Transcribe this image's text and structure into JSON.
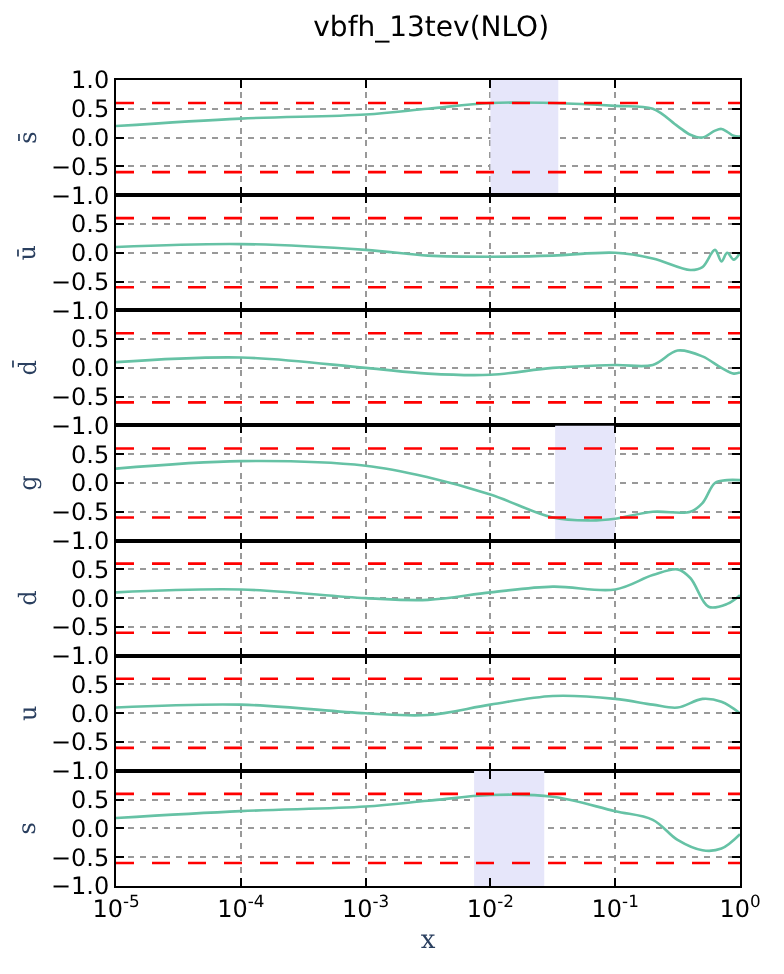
{
  "chart_data": [
    {
      "type": "line",
      "title": "vbfh_13tev(NLO)",
      "ylabel": "s̄",
      "tick_labels": "y",
      "grid": true,
      "line_style": "solid",
      "marker": "none",
      "xlim": [
        1e-05,
        1
      ],
      "log": "x",
      "ylim": [
        -1,
        1
      ],
      "yticks": [
        {
          "value": -1,
          "label": "−1.0"
        },
        {
          "value": -0.5,
          "label": "−0.5"
        },
        {
          "value": 0,
          "label": "0.0"
        },
        {
          "value": 0.5,
          "label": "0.5"
        },
        {
          "value": 1,
          "label": "1.0"
        }
      ],
      "xticks": [
        {
          "value": 1e-05,
          "label": null
        },
        {
          "value": 0.0001,
          "label": null
        },
        {
          "value": 0.001,
          "label": null
        },
        {
          "value": 0.01,
          "label": null
        },
        {
          "value": 0.1,
          "label": null
        },
        {
          "value": 1,
          "label": null
        }
      ],
      "ref_lines": [
        {
          "axis": "y",
          "value": 0.6,
          "color": "#ff0000",
          "line_style": "dashed"
        },
        {
          "axis": "y",
          "value": -0.6,
          "color": "#ff0000",
          "line_style": "dashed"
        }
      ],
      "bands": [
        {
          "axis": "x",
          "from": 0.01,
          "to": 0.035,
          "color": "#e6e6fa"
        }
      ],
      "series": [
        {
          "color": "#66c2a5",
          "x": [
            1e-05,
            0.0001,
            0.001,
            0.00316,
            0.01,
            0.0316,
            0.1,
            0.2,
            0.316,
            0.4,
            0.5,
            0.63,
            0.71,
            0.79,
            0.89,
            1
          ],
          "values": [
            0.2,
            0.33,
            0.4,
            0.5,
            0.6,
            0.6,
            0.55,
            0.5,
            0.2,
            0.05,
            0.0,
            0.12,
            0.15,
            0.1,
            0.03,
            0.02
          ]
        }
      ]
    },
    {
      "type": "line",
      "ylabel": "ū",
      "tick_labels": "y",
      "grid": true,
      "line_style": "solid",
      "marker": "none",
      "xlim": [
        1e-05,
        1
      ],
      "log": "x",
      "ylim": [
        -1,
        1
      ],
      "yticks": [
        {
          "value": -1,
          "label": "−1.0"
        },
        {
          "value": -0.5,
          "label": "−0.5"
        },
        {
          "value": 0,
          "label": "0.0"
        },
        {
          "value": 0.5,
          "label": "0.5"
        },
        {
          "value": 1,
          "label": null
        }
      ],
      "xticks": [
        {
          "value": 1e-05,
          "label": null
        },
        {
          "value": 0.0001,
          "label": null
        },
        {
          "value": 0.001,
          "label": null
        },
        {
          "value": 0.01,
          "label": null
        },
        {
          "value": 0.1,
          "label": null
        },
        {
          "value": 1,
          "label": null
        }
      ],
      "ref_lines": [
        {
          "axis": "y",
          "value": 0.6,
          "color": "#ff0000",
          "line_style": "dashed"
        },
        {
          "axis": "y",
          "value": -0.6,
          "color": "#ff0000",
          "line_style": "dashed"
        }
      ],
      "series": [
        {
          "color": "#66c2a5",
          "x": [
            1e-05,
            0.0001,
            0.001,
            0.00316,
            0.01,
            0.0316,
            0.1,
            0.2,
            0.4,
            0.5,
            0.63,
            0.71,
            0.79,
            0.89,
            1
          ],
          "values": [
            0.1,
            0.15,
            0.05,
            -0.05,
            -0.07,
            -0.05,
            0.0,
            -0.1,
            -0.3,
            -0.25,
            0.05,
            -0.15,
            0.0,
            -0.12,
            0.0
          ]
        }
      ]
    },
    {
      "type": "line",
      "ylabel": "d̄",
      "tick_labels": "y",
      "grid": true,
      "line_style": "solid",
      "marker": "none",
      "xlim": [
        1e-05,
        1
      ],
      "log": "x",
      "ylim": [
        -1,
        1
      ],
      "yticks": [
        {
          "value": -1,
          "label": "−1.0"
        },
        {
          "value": -0.5,
          "label": "−0.5"
        },
        {
          "value": 0,
          "label": "0.0"
        },
        {
          "value": 0.5,
          "label": "0.5"
        },
        {
          "value": 1,
          "label": null
        }
      ],
      "xticks": [
        {
          "value": 1e-05,
          "label": null
        },
        {
          "value": 0.0001,
          "label": null
        },
        {
          "value": 0.001,
          "label": null
        },
        {
          "value": 0.01,
          "label": null
        },
        {
          "value": 0.1,
          "label": null
        },
        {
          "value": 1,
          "label": null
        }
      ],
      "ref_lines": [
        {
          "axis": "y",
          "value": 0.6,
          "color": "#ff0000",
          "line_style": "dashed"
        },
        {
          "axis": "y",
          "value": -0.6,
          "color": "#ff0000",
          "line_style": "dashed"
        }
      ],
      "series": [
        {
          "color": "#66c2a5",
          "x": [
            1e-05,
            0.0001,
            0.001,
            0.00316,
            0.01,
            0.0316,
            0.1,
            0.2,
            0.316,
            0.5,
            0.71,
            0.89,
            1
          ],
          "values": [
            0.1,
            0.18,
            0.0,
            -0.1,
            -0.12,
            0.0,
            0.05,
            0.05,
            0.3,
            0.2,
            0.0,
            -0.1,
            -0.08
          ]
        }
      ]
    },
    {
      "type": "line",
      "ylabel": "g",
      "tick_labels": "y",
      "grid": true,
      "line_style": "solid",
      "marker": "none",
      "xlim": [
        1e-05,
        1
      ],
      "log": "x",
      "ylim": [
        -1,
        1
      ],
      "yticks": [
        {
          "value": -1,
          "label": "−1.0"
        },
        {
          "value": -0.5,
          "label": "−0.5"
        },
        {
          "value": 0,
          "label": "0.0"
        },
        {
          "value": 0.5,
          "label": "0.5"
        },
        {
          "value": 1,
          "label": null
        }
      ],
      "xticks": [
        {
          "value": 1e-05,
          "label": null
        },
        {
          "value": 0.0001,
          "label": null
        },
        {
          "value": 0.001,
          "label": null
        },
        {
          "value": 0.01,
          "label": null
        },
        {
          "value": 0.1,
          "label": null
        },
        {
          "value": 1,
          "label": null
        }
      ],
      "ref_lines": [
        {
          "axis": "y",
          "value": 0.6,
          "color": "#ff0000",
          "line_style": "dashed"
        },
        {
          "axis": "y",
          "value": -0.6,
          "color": "#ff0000",
          "line_style": "dashed"
        }
      ],
      "bands": [
        {
          "axis": "x",
          "from": 0.033,
          "to": 0.1,
          "color": "#e6e6fa"
        }
      ],
      "series": [
        {
          "color": "#66c2a5",
          "x": [
            1e-05,
            0.0001,
            0.001,
            0.00316,
            0.01,
            0.0316,
            0.063,
            0.1,
            0.2,
            0.4,
            0.5,
            0.63,
            0.79,
            1
          ],
          "values": [
            0.25,
            0.38,
            0.3,
            0.1,
            -0.2,
            -0.6,
            -0.65,
            -0.62,
            -0.5,
            -0.5,
            -0.35,
            0.0,
            0.05,
            0.05
          ]
        }
      ]
    },
    {
      "type": "line",
      "ylabel": "d",
      "tick_labels": "y",
      "grid": true,
      "line_style": "solid",
      "marker": "none",
      "xlim": [
        1e-05,
        1
      ],
      "log": "x",
      "ylim": [
        -1,
        1
      ],
      "yticks": [
        {
          "value": -1,
          "label": "−1.0"
        },
        {
          "value": -0.5,
          "label": "−0.5"
        },
        {
          "value": 0,
          "label": "0.0"
        },
        {
          "value": 0.5,
          "label": "0.5"
        },
        {
          "value": 1,
          "label": null
        }
      ],
      "xticks": [
        {
          "value": 1e-05,
          "label": null
        },
        {
          "value": 0.0001,
          "label": null
        },
        {
          "value": 0.001,
          "label": null
        },
        {
          "value": 0.01,
          "label": null
        },
        {
          "value": 0.1,
          "label": null
        },
        {
          "value": 1,
          "label": null
        }
      ],
      "ref_lines": [
        {
          "axis": "y",
          "value": 0.6,
          "color": "#ff0000",
          "line_style": "dashed"
        },
        {
          "axis": "y",
          "value": -0.6,
          "color": "#ff0000",
          "line_style": "dashed"
        }
      ],
      "series": [
        {
          "color": "#66c2a5",
          "x": [
            1e-05,
            0.0001,
            0.001,
            0.00316,
            0.01,
            0.0316,
            0.1,
            0.2,
            0.316,
            0.4,
            0.56,
            0.79,
            1
          ],
          "values": [
            0.1,
            0.15,
            0.0,
            -0.03,
            0.1,
            0.2,
            0.15,
            0.4,
            0.5,
            0.35,
            -0.15,
            -0.1,
            0.05
          ]
        }
      ]
    },
    {
      "type": "line",
      "ylabel": "u",
      "tick_labels": "y",
      "grid": true,
      "line_style": "solid",
      "marker": "none",
      "xlim": [
        1e-05,
        1
      ],
      "log": "x",
      "ylim": [
        -1,
        1
      ],
      "yticks": [
        {
          "value": -1,
          "label": "−1.0"
        },
        {
          "value": -0.5,
          "label": "−0.5"
        },
        {
          "value": 0,
          "label": "0.0"
        },
        {
          "value": 0.5,
          "label": "0.5"
        },
        {
          "value": 1,
          "label": null
        }
      ],
      "xticks": [
        {
          "value": 1e-05,
          "label": null
        },
        {
          "value": 0.0001,
          "label": null
        },
        {
          "value": 0.001,
          "label": null
        },
        {
          "value": 0.01,
          "label": null
        },
        {
          "value": 0.1,
          "label": null
        },
        {
          "value": 1,
          "label": null
        }
      ],
      "ref_lines": [
        {
          "axis": "y",
          "value": 0.6,
          "color": "#ff0000",
          "line_style": "dashed"
        },
        {
          "axis": "y",
          "value": -0.6,
          "color": "#ff0000",
          "line_style": "dashed"
        }
      ],
      "series": [
        {
          "color": "#66c2a5",
          "x": [
            1e-05,
            0.0001,
            0.001,
            0.00316,
            0.01,
            0.0316,
            0.1,
            0.2,
            0.316,
            0.5,
            0.71,
            1
          ],
          "values": [
            0.1,
            0.15,
            0.0,
            -0.03,
            0.15,
            0.3,
            0.25,
            0.15,
            0.1,
            0.25,
            0.2,
            0.0
          ]
        }
      ]
    },
    {
      "type": "line",
      "ylabel": "s",
      "xlabel": "x",
      "grid": true,
      "line_style": "solid",
      "marker": "none",
      "xlim": [
        1e-05,
        1
      ],
      "log": "x",
      "ylim": [
        -1,
        1
      ],
      "yticks": [
        {
          "value": -1,
          "label": "−1.0"
        },
        {
          "value": -0.5,
          "label": "−0.5"
        },
        {
          "value": 0,
          "label": "0.0"
        },
        {
          "value": 0.5,
          "label": "0.5"
        },
        {
          "value": 1,
          "label": null
        }
      ],
      "xticks": [
        {
          "value": 1e-05,
          "label": "10$^{-5}$"
        },
        {
          "value": 0.0001,
          "label": "10$^{-4}$"
        },
        {
          "value": 0.001,
          "label": "10$^{-3}$"
        },
        {
          "value": 0.01,
          "label": "10$^{-2}$"
        },
        {
          "value": 0.1,
          "label": "10$^{-1}$"
        },
        {
          "value": 1,
          "label": "10$^{0}$"
        }
      ],
      "ref_lines": [
        {
          "axis": "y",
          "value": 0.6,
          "color": "#ff0000",
          "line_style": "dashed"
        },
        {
          "axis": "y",
          "value": -0.6,
          "color": "#ff0000",
          "line_style": "dashed"
        }
      ],
      "bands": [
        {
          "axis": "x",
          "from": 0.0074,
          "to": 0.027,
          "color": "#e6e6fa"
        }
      ],
      "series": [
        {
          "color": "#66c2a5",
          "x": [
            1e-05,
            0.0001,
            0.001,
            0.00316,
            0.01,
            0.0316,
            0.1,
            0.2,
            0.316,
            0.5,
            0.71,
            1
          ],
          "values": [
            0.18,
            0.3,
            0.38,
            0.48,
            0.58,
            0.55,
            0.3,
            0.15,
            -0.2,
            -0.38,
            -0.35,
            -0.1
          ]
        }
      ]
    }
  ]
}
